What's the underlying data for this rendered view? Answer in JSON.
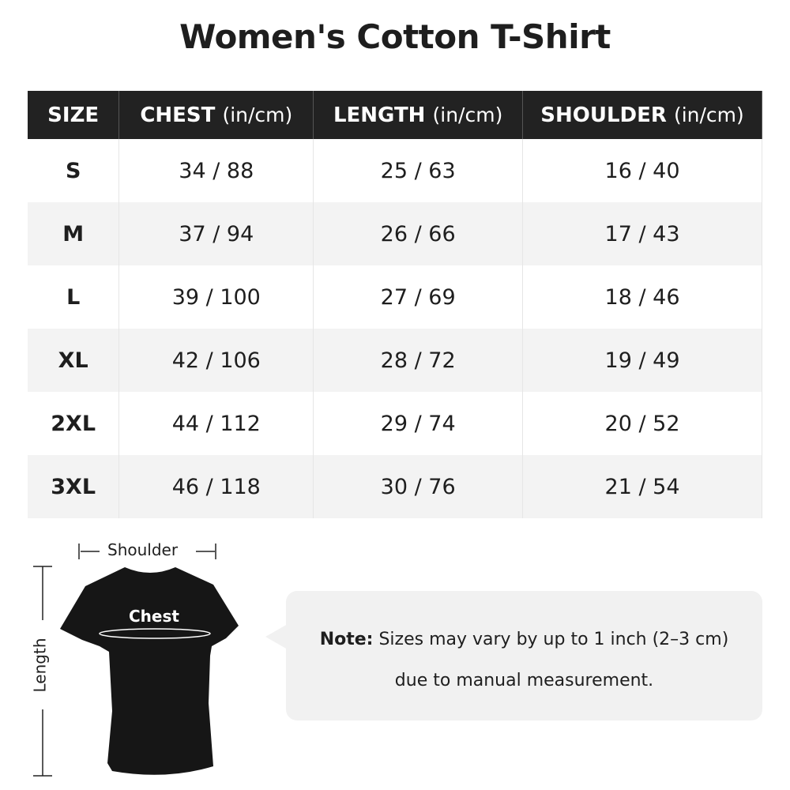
{
  "title": "Women's Cotton T-Shirt",
  "table": {
    "headers": [
      {
        "label": "SIZE",
        "unit": ""
      },
      {
        "label": "CHEST",
        "unit": "(in/cm)"
      },
      {
        "label": "LENGTH",
        "unit": "(in/cm)"
      },
      {
        "label": "SHOULDER",
        "unit": "(in/cm)"
      }
    ],
    "rows": [
      [
        "S",
        "34 / 88",
        "25 / 63",
        "16 / 40"
      ],
      [
        "M",
        "37 / 94",
        "26 / 66",
        "17 / 43"
      ],
      [
        "L",
        "39 / 100",
        "27 / 69",
        "18 / 46"
      ],
      [
        "XL",
        "42 / 106",
        "28 / 72",
        "19 / 49"
      ],
      [
        "2XL",
        "44 / 112",
        "29 / 74",
        "20 / 52"
      ],
      [
        "3XL",
        "46 / 118",
        "30 / 76",
        "21 / 54"
      ]
    ]
  },
  "diagram": {
    "shoulder": "Shoulder",
    "chest": "Chest",
    "length": "Length",
    "shirt_color": "#161616"
  },
  "note": {
    "label": "Note:",
    "line1": "Sizes may vary by up to 1 inch (2–3 cm)",
    "line2": "due to manual measurement."
  }
}
